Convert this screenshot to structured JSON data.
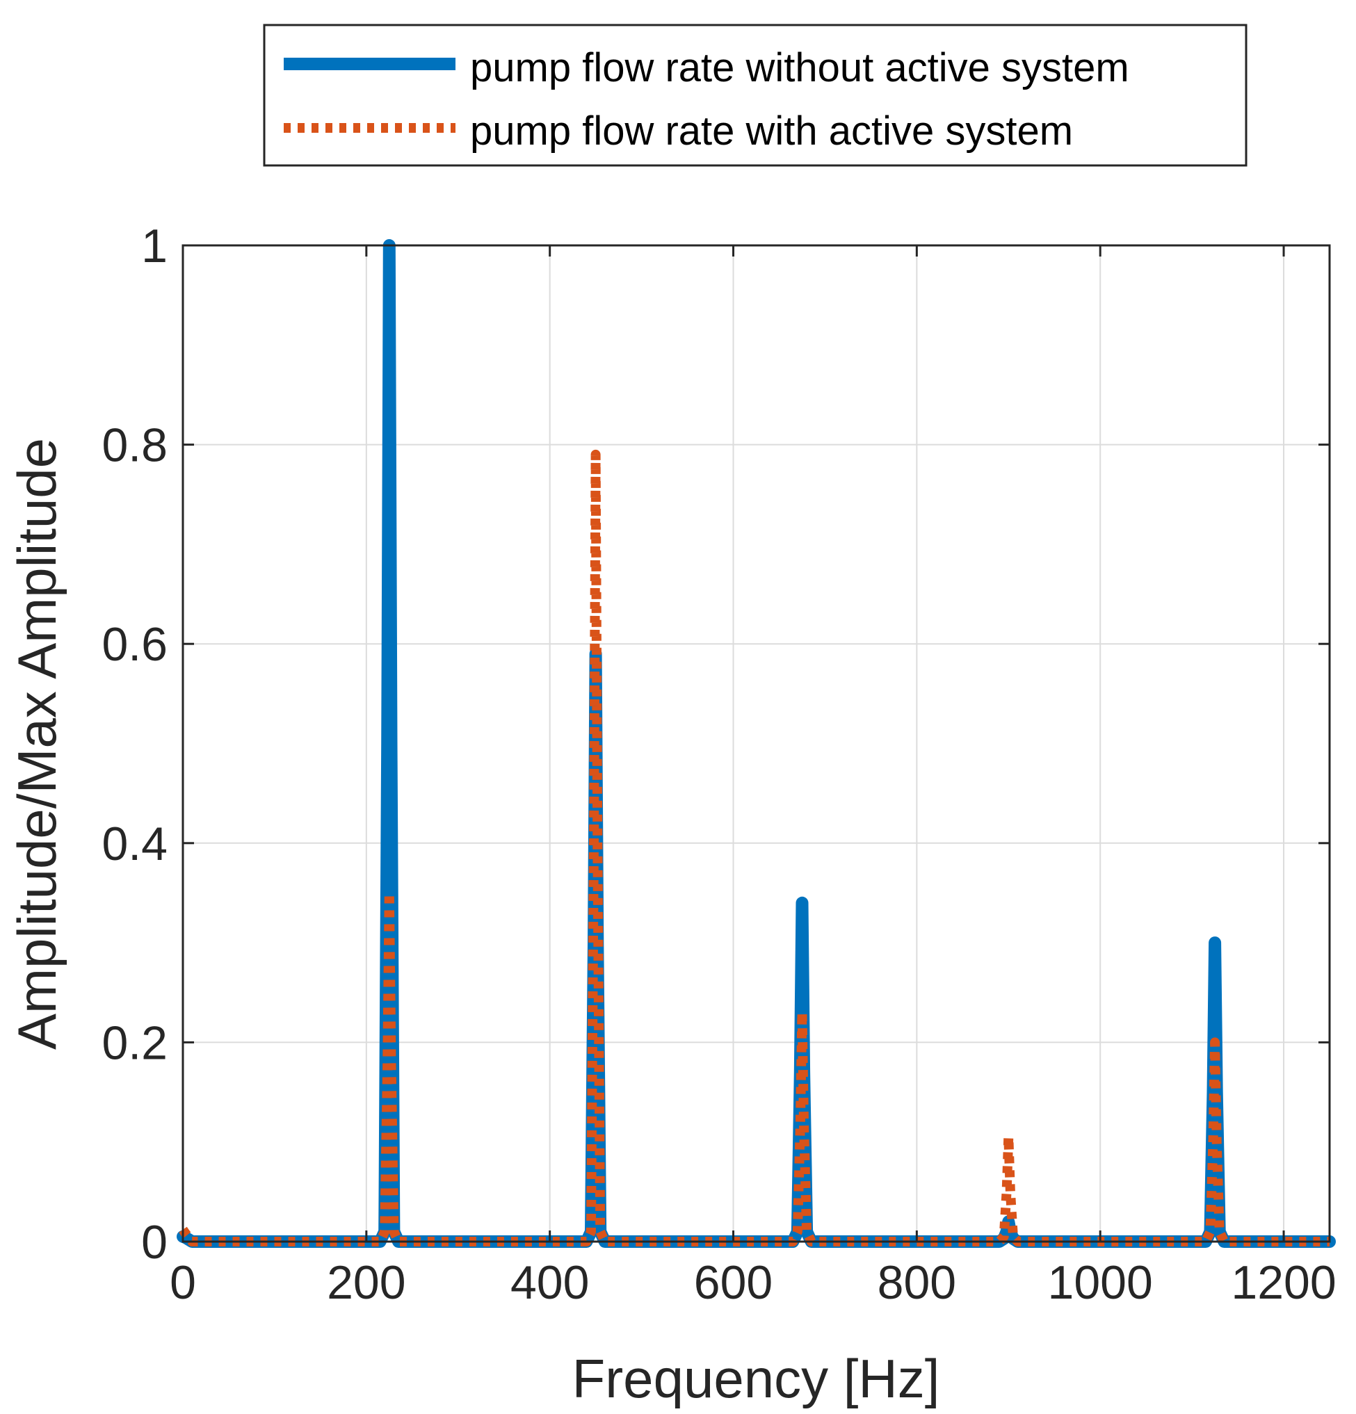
{
  "chart_data": {
    "type": "line",
    "title": "",
    "xlabel": "Frequency [Hz]",
    "ylabel": "Amplitude/Max Amplitude",
    "xlim": [
      0,
      1250
    ],
    "ylim": [
      0,
      1
    ],
    "xticks": [
      0,
      200,
      400,
      600,
      800,
      1000,
      1200
    ],
    "xtick_labels": [
      "0",
      "200",
      "400",
      "600",
      "800",
      "1000",
      "1200"
    ],
    "yticks": [
      0,
      0.2,
      0.4,
      0.6,
      0.8,
      1
    ],
    "ytick_labels": [
      "0",
      "0.2",
      "0.4",
      "0.6",
      "0.8",
      "1"
    ],
    "grid": true,
    "legend_position": "top-center (outside, above axes)",
    "series": [
      {
        "name": "pump flow rate without active system",
        "color": "#0072BD",
        "style": "solid",
        "x": [
          0,
          3,
          10,
          215,
          220,
          223,
          225,
          227,
          230,
          235,
          440,
          445,
          448,
          450,
          452,
          455,
          460,
          665,
          670,
          673,
          675,
          677,
          680,
          685,
          890,
          895,
          898,
          900,
          902,
          905,
          910,
          1115,
          1120,
          1123,
          1125,
          1127,
          1130,
          1135,
          1250
        ],
        "values": [
          0.005,
          0.004,
          0.0,
          0.0,
          0.01,
          0.5,
          1.0,
          0.5,
          0.01,
          0.0,
          0.0,
          0.01,
          0.3,
          0.59,
          0.3,
          0.01,
          0.0,
          0.0,
          0.01,
          0.17,
          0.34,
          0.17,
          0.01,
          0.0,
          0.0,
          0.003,
          0.01,
          0.02,
          0.01,
          0.003,
          0.0,
          0.0,
          0.01,
          0.15,
          0.3,
          0.15,
          0.01,
          0.0,
          0.0
        ]
      },
      {
        "name": "pump flow rate with active system",
        "color": "#D95319",
        "style": "dotted",
        "x": [
          0,
          3,
          10,
          215,
          220,
          223,
          225,
          227,
          230,
          235,
          440,
          445,
          448,
          450,
          452,
          455,
          460,
          665,
          670,
          673,
          675,
          677,
          680,
          685,
          890,
          895,
          898,
          900,
          902,
          905,
          910,
          1115,
          1120,
          1123,
          1125,
          1127,
          1130,
          1135,
          1250
        ],
        "values": [
          0.012,
          0.008,
          0.0,
          0.0,
          0.01,
          0.18,
          0.35,
          0.18,
          0.01,
          0.0,
          0.0,
          0.01,
          0.4,
          0.79,
          0.4,
          0.01,
          0.0,
          0.0,
          0.01,
          0.115,
          0.23,
          0.115,
          0.01,
          0.0,
          0.0,
          0.005,
          0.05,
          0.105,
          0.05,
          0.005,
          0.0,
          0.0,
          0.01,
          0.1,
          0.2,
          0.1,
          0.01,
          0.0,
          0.0
        ]
      }
    ]
  }
}
